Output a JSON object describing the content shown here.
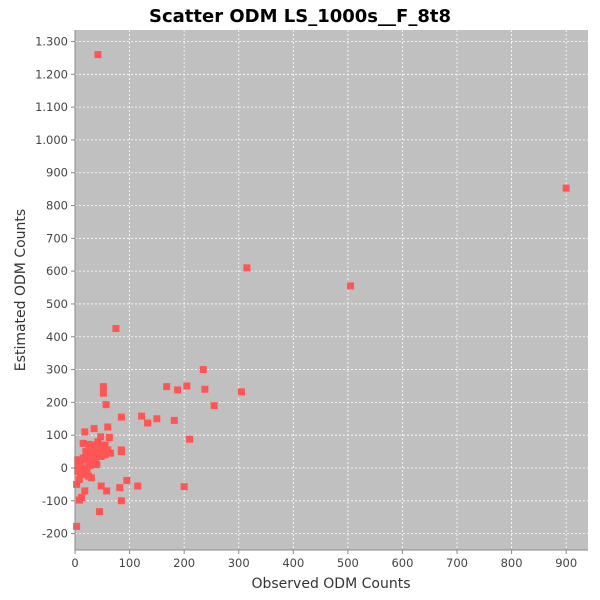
{
  "chart_data": {
    "type": "scatter",
    "title": "Scatter ODM LS_1000s__F_8t8",
    "xlabel": "Observed ODM Counts",
    "ylabel": "Estimated ODM Counts",
    "xlim": [
      0,
      940
    ],
    "ylim": [
      -250,
      1335
    ],
    "x_ticks": [
      0,
      100,
      200,
      300,
      400,
      500,
      600,
      700,
      800,
      900
    ],
    "x_tick_labels": [
      "0",
      "100",
      "200",
      "300",
      "400",
      "500",
      "600",
      "700",
      "800",
      "900"
    ],
    "y_ticks": [
      -200,
      -100,
      0,
      100,
      200,
      300,
      400,
      500,
      600,
      700,
      800,
      900,
      1000,
      1100,
      1200,
      1300
    ],
    "y_tick_labels": [
      "-200",
      "-100",
      "0",
      "100",
      "200",
      "300",
      "400",
      "500",
      "600",
      "700",
      "800",
      "900",
      "1.000",
      "1.100",
      "1.200",
      "1.300"
    ],
    "grid": true,
    "marker_color": "#ff5555",
    "plot_background": "#c0c0c0",
    "grid_color": "#ffffff",
    "points": [
      [
        42,
        1260
      ],
      [
        900,
        853
      ],
      [
        315,
        610
      ],
      [
        505,
        555
      ],
      [
        75,
        425
      ],
      [
        235,
        300
      ],
      [
        168,
        248
      ],
      [
        205,
        250
      ],
      [
        52,
        248
      ],
      [
        52,
        228
      ],
      [
        188,
        238
      ],
      [
        238,
        240
      ],
      [
        305,
        232
      ],
      [
        255,
        190
      ],
      [
        57,
        193
      ],
      [
        85,
        155
      ],
      [
        122,
        158
      ],
      [
        150,
        150
      ],
      [
        133,
        137
      ],
      [
        182,
        145
      ],
      [
        60,
        125
      ],
      [
        35,
        120
      ],
      [
        18,
        110
      ],
      [
        63,
        93
      ],
      [
        210,
        88
      ],
      [
        47,
        95
      ],
      [
        15,
        75
      ],
      [
        25,
        72
      ],
      [
        40,
        65
      ],
      [
        85,
        55
      ],
      [
        85,
        50
      ],
      [
        60,
        55
      ],
      [
        30,
        50
      ],
      [
        45,
        45
      ],
      [
        55,
        40
      ],
      [
        35,
        30
      ],
      [
        20,
        25
      ],
      [
        10,
        20
      ],
      [
        25,
        15
      ],
      [
        40,
        10
      ],
      [
        5,
        5
      ],
      [
        12,
        0
      ],
      [
        22,
        -5
      ],
      [
        5,
        -10
      ],
      [
        15,
        -20
      ],
      [
        30,
        -30
      ],
      [
        8,
        -35
      ],
      [
        3,
        -50
      ],
      [
        18,
        -70
      ],
      [
        12,
        -90
      ],
      [
        48,
        -55
      ],
      [
        58,
        -70
      ],
      [
        82,
        -60
      ],
      [
        95,
        -38
      ],
      [
        115,
        -55
      ],
      [
        85,
        -100
      ],
      [
        45,
        -133
      ],
      [
        200,
        -57
      ],
      [
        3,
        -178
      ],
      [
        8,
        -98
      ],
      [
        28,
        35
      ],
      [
        38,
        22
      ],
      [
        50,
        60
      ],
      [
        65,
        45
      ],
      [
        42,
        80
      ],
      [
        28,
        8
      ],
      [
        33,
        45
      ],
      [
        20,
        50
      ],
      [
        10,
        -15
      ],
      [
        15,
        30
      ],
      [
        48,
        35
      ],
      [
        25,
        -25
      ],
      [
        36,
        70
      ],
      [
        55,
        70
      ],
      [
        5,
        25
      ]
    ]
  }
}
